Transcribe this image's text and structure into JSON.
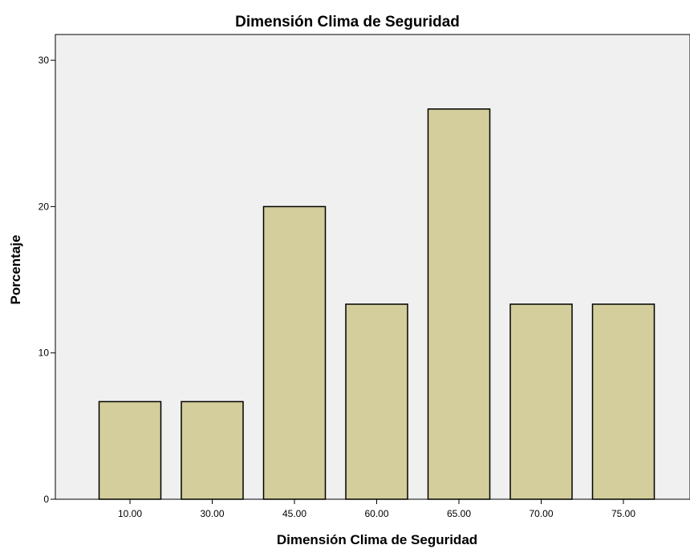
{
  "chart_data": {
    "type": "bar",
    "title": "Dimensión Clima de Seguridad",
    "xlabel": "Dimensión Clima de Seguridad",
    "ylabel": "Porcentaje",
    "categories": [
      "10.00",
      "30.00",
      "45.00",
      "60.00",
      "65.00",
      "70.00",
      "75.00"
    ],
    "values": [
      6.67,
      6.67,
      20.0,
      13.33,
      26.67,
      13.33,
      13.33
    ],
    "ylim": [
      0,
      31.8
    ],
    "yticks": [
      "0",
      "10",
      "20",
      "30"
    ],
    "grid": false,
    "legend": "none",
    "colors": {
      "bar_fill": "#d3ce9b",
      "bar_stroke": "#000000",
      "plot_background": "#f0f0f0",
      "page_background": "#ffffff"
    }
  }
}
